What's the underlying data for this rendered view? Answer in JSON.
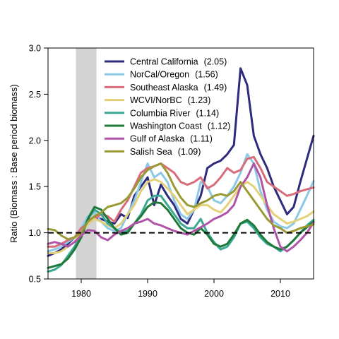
{
  "chart_data": {
    "type": "line",
    "title": "",
    "xlabel": "",
    "ylabel": "Ratio (Biomass : Base period biomass)",
    "xlim": [
      1975,
      2015
    ],
    "ylim": [
      0.5,
      3.0
    ],
    "x_ticks": [
      "1980",
      "1990",
      "2000",
      "2010"
    ],
    "y_ticks": [
      "0.5",
      "1.0",
      "1.5",
      "2.0",
      "2.5",
      "3.0"
    ],
    "grid": false,
    "legend_position": "top",
    "base_period": {
      "start": 1979.2,
      "end": 1982.3,
      "color": "#d3d3d3"
    },
    "reference_line": {
      "y": 1.0,
      "style": "dashed",
      "color": "#000000"
    },
    "x": [
      1975,
      1976,
      1977,
      1978,
      1979,
      1980,
      1981,
      1982,
      1983,
      1984,
      1985,
      1986,
      1987,
      1988,
      1989,
      1990,
      1991,
      1992,
      1993,
      1994,
      1995,
      1996,
      1997,
      1998,
      1999,
      2000,
      2001,
      2002,
      2003,
      2004,
      2005,
      2006,
      2007,
      2008,
      2009,
      2010,
      2011,
      2012,
      2013,
      2014,
      2015
    ],
    "series": [
      {
        "name": "Central California",
        "value_label": "(2.05)",
        "color": "#2e2a7e",
        "values": [
          0.75,
          0.78,
          0.82,
          0.88,
          0.95,
          1.05,
          1.13,
          1.17,
          1.15,
          1.12,
          1.1,
          1.2,
          1.16,
          1.4,
          1.5,
          1.6,
          1.3,
          1.52,
          1.4,
          1.3,
          1.15,
          1.1,
          1.25,
          1.4,
          1.7,
          1.75,
          1.78,
          1.85,
          1.95,
          2.78,
          2.6,
          2.05,
          1.85,
          1.7,
          1.5,
          1.35,
          1.2,
          1.28,
          1.55,
          1.8,
          2.05
        ]
      },
      {
        "name": "NorCal/Oregon",
        "value_label": "(1.56)",
        "color": "#8cc8e8",
        "values": [
          0.8,
          0.82,
          0.85,
          0.9,
          0.95,
          1.05,
          1.18,
          1.22,
          1.12,
          1.05,
          1.02,
          1.05,
          1.2,
          1.35,
          1.55,
          1.75,
          1.6,
          1.65,
          1.55,
          1.35,
          1.2,
          1.15,
          1.25,
          1.55,
          1.5,
          1.35,
          1.32,
          1.4,
          1.5,
          1.65,
          1.85,
          1.75,
          1.45,
          1.25,
          1.12,
          1.07,
          1.05,
          1.1,
          1.25,
          1.4,
          1.56
        ]
      },
      {
        "name": "Southeast Alaska",
        "value_label": "(1.49)",
        "color": "#d96c7a",
        "values": [
          0.85,
          0.85,
          0.88,
          0.92,
          0.95,
          1.05,
          1.1,
          1.15,
          1.2,
          1.18,
          1.12,
          1.25,
          1.35,
          1.5,
          1.65,
          1.7,
          1.72,
          1.75,
          1.7,
          1.65,
          1.55,
          1.52,
          1.55,
          1.6,
          1.48,
          1.52,
          1.6,
          1.7,
          1.65,
          1.68,
          1.8,
          1.82,
          1.7,
          1.55,
          1.5,
          1.45,
          1.4,
          1.42,
          1.45,
          1.47,
          1.49
        ]
      },
      {
        "name": "WCVI/NorBC",
        "value_label": "(1.23)",
        "color": "#e3d17a",
        "values": [
          0.78,
          0.78,
          0.8,
          0.85,
          0.9,
          1.0,
          1.1,
          1.15,
          1.12,
          1.08,
          1.05,
          1.1,
          1.2,
          1.3,
          1.45,
          1.55,
          1.58,
          1.55,
          1.48,
          1.4,
          1.3,
          1.2,
          1.25,
          1.3,
          1.3,
          1.25,
          1.22,
          1.3,
          1.4,
          1.5,
          1.55,
          1.5,
          1.4,
          1.3,
          1.2,
          1.15,
          1.1,
          1.12,
          1.15,
          1.18,
          1.23
        ]
      },
      {
        "name": "Columbia River",
        "value_label": "(1.14)",
        "color": "#3aa894",
        "values": [
          0.58,
          0.6,
          0.65,
          0.75,
          0.85,
          0.98,
          1.15,
          1.25,
          1.2,
          1.1,
          1.05,
          1.0,
          1.02,
          1.1,
          1.2,
          1.35,
          1.4,
          1.4,
          1.3,
          1.2,
          1.1,
          1.05,
          1.05,
          1.15,
          1.0,
          0.9,
          0.82,
          0.85,
          0.95,
          1.1,
          1.12,
          1.05,
          0.95,
          0.88,
          0.85,
          0.8,
          0.85,
          0.92,
          1.0,
          1.08,
          1.14
        ]
      },
      {
        "name": "Washington Coast",
        "value_label": "(1.12)",
        "color": "#1f7a3a",
        "values": [
          0.62,
          0.64,
          0.66,
          0.72,
          0.82,
          0.95,
          1.15,
          1.28,
          1.25,
          1.15,
          1.05,
          0.98,
          1.0,
          1.1,
          1.18,
          1.28,
          1.33,
          1.32,
          1.25,
          1.15,
          1.05,
          1.0,
          0.98,
          1.05,
          0.98,
          0.88,
          0.85,
          0.88,
          0.98,
          1.1,
          1.14,
          1.08,
          0.98,
          0.9,
          0.85,
          0.82,
          0.85,
          0.92,
          1.0,
          1.06,
          1.12
        ]
      },
      {
        "name": "Gulf of Alaska",
        "value_label": "(1.11)",
        "color": "#b054a8",
        "values": [
          0.88,
          0.9,
          0.88,
          0.85,
          0.9,
          0.97,
          1.03,
          1.02,
          0.95,
          0.92,
          0.98,
          1.02,
          1.05,
          1.1,
          1.12,
          1.15,
          1.1,
          1.08,
          1.05,
          1.02,
          1.0,
          0.98,
          1.02,
          1.06,
          1.1,
          1.15,
          1.18,
          1.22,
          1.3,
          1.5,
          1.6,
          1.75,
          1.6,
          1.3,
          1.05,
          0.85,
          0.8,
          0.85,
          0.92,
          1.0,
          1.11
        ]
      },
      {
        "name": "Salish Sea",
        "value_label": "(1.09)",
        "color": "#9a9a35",
        "values": [
          1.04,
          1.03,
          0.97,
          0.93,
          0.95,
          1.0,
          1.12,
          1.18,
          1.22,
          1.28,
          1.3,
          1.32,
          1.38,
          1.48,
          1.6,
          1.68,
          1.72,
          1.75,
          1.65,
          1.5,
          1.38,
          1.3,
          1.28,
          1.32,
          1.35,
          1.4,
          1.42,
          1.4,
          1.45,
          1.55,
          1.45,
          1.35,
          1.25,
          1.15,
          1.08,
          1.05,
          1.0,
          1.02,
          1.05,
          1.07,
          1.09
        ]
      }
    ]
  }
}
